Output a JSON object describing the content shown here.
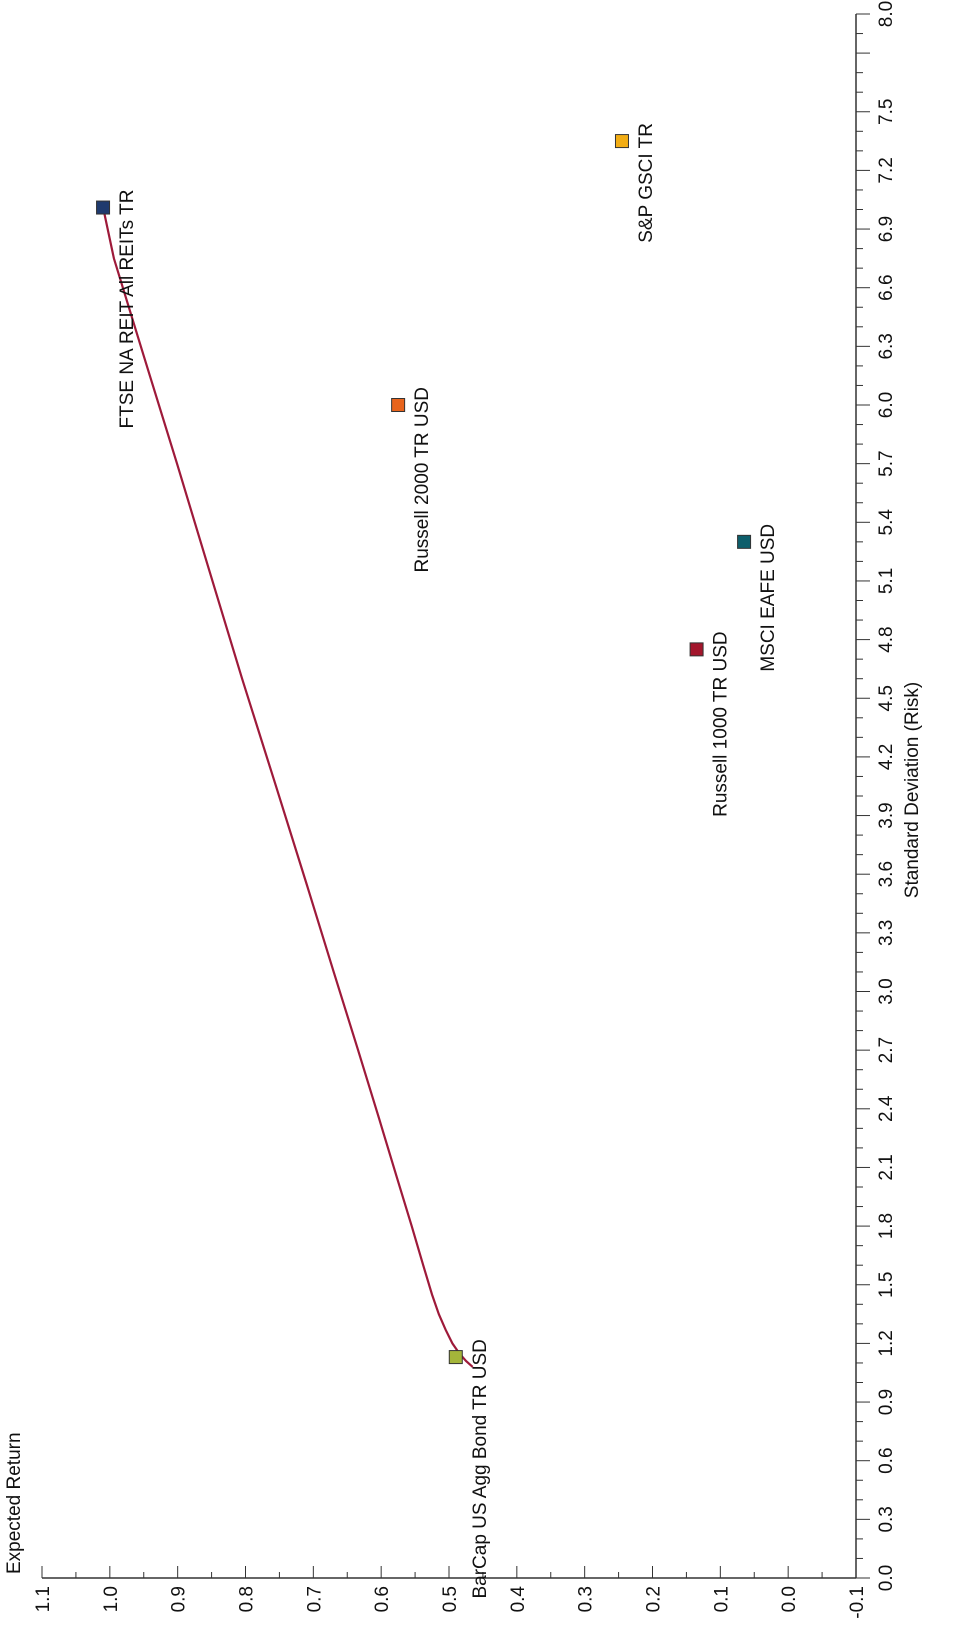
{
  "chart_data": {
    "type": "scatter",
    "orientation": "rotated-90-clockwise",
    "xlabel": "Standard Deviation (Risk)",
    "ylabel": "Expected Return",
    "xlim": [
      0.0,
      8.0
    ],
    "ylim": [
      -0.1,
      1.1
    ],
    "x_ticks": [
      "0.0",
      "0.3",
      "0.6",
      "0.9",
      "1.2",
      "1.5",
      "1.8",
      "2.1",
      "2.4",
      "2.7",
      "3.0",
      "3.3",
      "3.6",
      "3.9",
      "4.2",
      "4.5",
      "4.8",
      "5.1",
      "5.4",
      "5.7",
      "6.0",
      "6.3",
      "6.6",
      "6.9",
      "7.2",
      "7.5",
      "8.0"
    ],
    "y_ticks": [
      "-0.1",
      "0.0",
      "0.1",
      "0.2",
      "0.3",
      "0.4",
      "0.5",
      "0.6",
      "0.7",
      "0.8",
      "0.9",
      "1.0",
      "1.1"
    ],
    "grid": false,
    "series": [
      {
        "label": "FTSE NA REIT All REITs TR",
        "x": 7.01,
        "y": 1.01,
        "color": "#1f3a6e"
      },
      {
        "label": "Russell 2000 TR USD",
        "x": 6.0,
        "y": 0.575,
        "color": "#e8641c"
      },
      {
        "label": "MSCI EAFE USD",
        "x": 5.3,
        "y": 0.065,
        "color": "#0d5e6b"
      },
      {
        "label": "Russell 1000 TR USD",
        "x": 4.75,
        "y": 0.135,
        "color": "#a3162c"
      },
      {
        "label": "S&P GSCI TR",
        "x": 7.35,
        "y": 0.245,
        "color": "#f2ad14"
      },
      {
        "label": "BarCap US Agg Bond TR USD",
        "x": 1.13,
        "y": 0.49,
        "color": "#a4b53a"
      }
    ],
    "frontier": {
      "color": "#9e1a3a",
      "x": [
        1.08,
        1.11,
        1.15,
        1.2,
        1.27,
        1.35,
        1.45,
        1.6,
        1.8,
        2.05,
        2.35,
        2.7,
        3.1,
        3.55,
        4.05,
        4.6,
        5.15,
        5.7,
        6.25,
        6.75,
        7.01
      ],
      "y": [
        0.465,
        0.475,
        0.485,
        0.495,
        0.505,
        0.515,
        0.525,
        0.538,
        0.555,
        0.577,
        0.603,
        0.634,
        0.67,
        0.71,
        0.755,
        0.805,
        0.853,
        0.901,
        0.95,
        0.994,
        1.01
      ]
    }
  }
}
